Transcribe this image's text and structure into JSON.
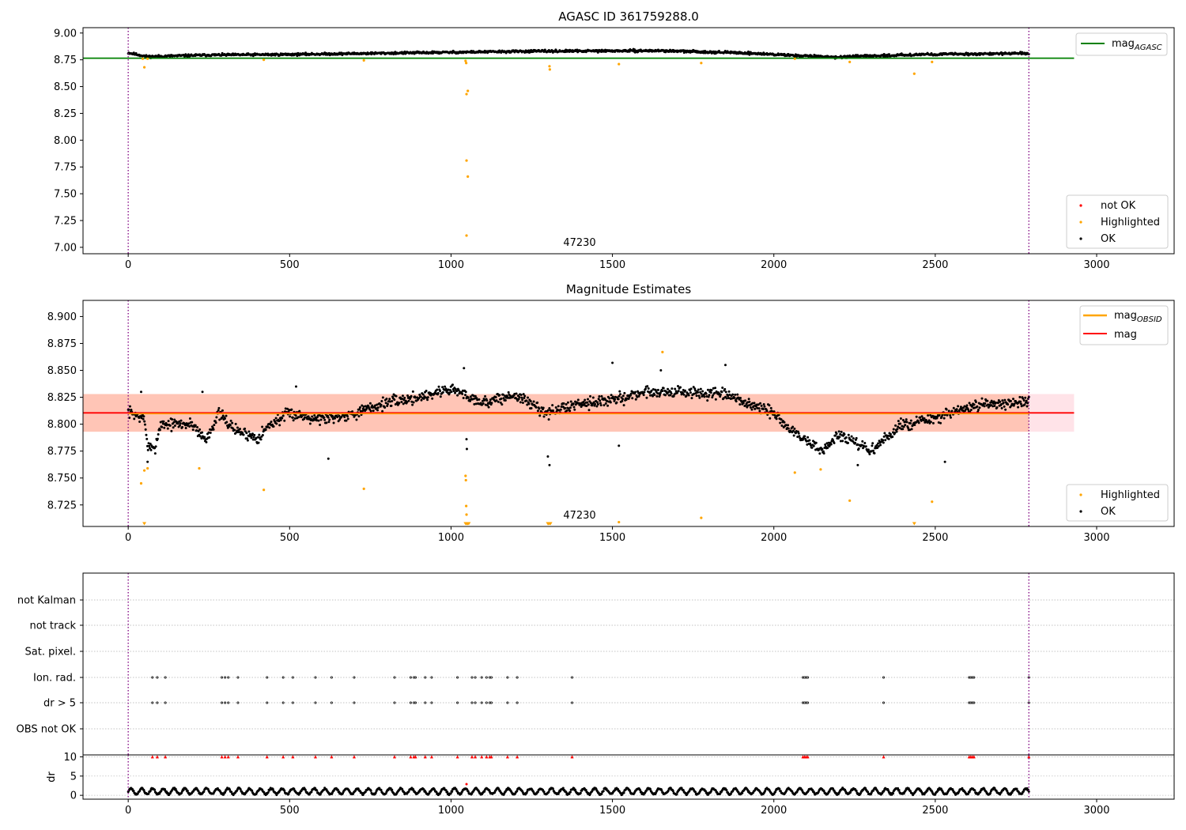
{
  "chart_data": [
    {
      "type": "scatter",
      "title": "AGASC ID 361759288.0",
      "xlim": [
        -140,
        3240
      ],
      "ylim": [
        6.94,
        9.05
      ],
      "xticks": [
        0,
        500,
        1000,
        1500,
        2000,
        2500,
        3000
      ],
      "yticks": [
        "9.00",
        "8.75",
        "8.50",
        "8.25",
        "8.00",
        "7.75",
        "7.50",
        "7.25",
        "7.00"
      ],
      "vlines": [
        0,
        2790
      ],
      "hlines": [
        {
          "name_main": "mag",
          "name_sub": "AGASC",
          "y": 8.765,
          "x_end": 2930,
          "color": "#008000"
        }
      ],
      "annotation": {
        "text": "47230",
        "x": 1400,
        "y": 7.03
      },
      "ok_series": {
        "name": "OK",
        "color": "#000000",
        "x_range": [
          0,
          2790
        ],
        "segments": [
          [
            0,
            8.815
          ],
          [
            60,
            8.78
          ],
          [
            250,
            8.795
          ],
          [
            500,
            8.8
          ],
          [
            1000,
            8.82
          ],
          [
            1250,
            8.83
          ],
          [
            1650,
            8.835
          ],
          [
            1900,
            8.815
          ],
          [
            2070,
            8.79
          ],
          [
            2200,
            8.775
          ],
          [
            2450,
            8.8
          ],
          [
            2790,
            8.81
          ]
        ]
      },
      "highlighted": {
        "name": "Highlighted",
        "color": "#ffa500",
        "points": [
          [
            45,
            8.76
          ],
          [
            50,
            8.68
          ],
          [
            60,
            8.76
          ],
          [
            420,
            8.75
          ],
          [
            730,
            8.745
          ],
          [
            1045,
            8.74
          ],
          [
            1047,
            8.72
          ],
          [
            1048,
            8.43
          ],
          [
            1052,
            8.46
          ],
          [
            1048,
            7.81
          ],
          [
            1052,
            7.66
          ],
          [
            1048,
            7.11
          ],
          [
            1305,
            8.69
          ],
          [
            1306,
            8.66
          ],
          [
            1520,
            8.71
          ],
          [
            1775,
            8.72
          ],
          [
            2065,
            8.76
          ],
          [
            2235,
            8.73
          ],
          [
            2435,
            8.62
          ],
          [
            2490,
            8.73
          ]
        ]
      },
      "not_ok": {
        "name": "not OK",
        "color": "#ff0000",
        "points": []
      },
      "legend_upper": "top-right",
      "legend_lower": "bottom-right"
    },
    {
      "type": "scatter",
      "title": "Magnitude Estimates",
      "xlim": [
        -140,
        3240
      ],
      "ylim": [
        8.705,
        8.915
      ],
      "xticks": [
        0,
        500,
        1000,
        1500,
        2000,
        2500,
        3000
      ],
      "yticks": [
        "8.900",
        "8.875",
        "8.850",
        "8.825",
        "8.800",
        "8.775",
        "8.750",
        "8.725"
      ],
      "vlines": [
        0,
        2790
      ],
      "annotation": {
        "text": "47230",
        "x": 1400,
        "y": 8.713
      },
      "mag_obsid": {
        "name_main": "mag",
        "name_sub": "OBSID",
        "y": 8.8105,
        "band": [
          8.793,
          8.828
        ],
        "x_end": 2790,
        "color": "#ffa500"
      },
      "mag": {
        "name": "mag",
        "y": 8.8105,
        "band": [
          8.793,
          8.828
        ],
        "x_end": 2930,
        "color": "#ff0000"
      },
      "ok_series": {
        "name": "OK",
        "color": "#000000",
        "trend": [
          [
            0,
            8.812
          ],
          [
            50,
            8.805
          ],
          [
            60,
            8.78
          ],
          [
            80,
            8.775
          ],
          [
            100,
            8.8
          ],
          [
            200,
            8.8
          ],
          [
            240,
            8.785
          ],
          [
            280,
            8.81
          ],
          [
            330,
            8.795
          ],
          [
            400,
            8.787
          ],
          [
            440,
            8.8
          ],
          [
            500,
            8.81
          ],
          [
            600,
            8.805
          ],
          [
            700,
            8.81
          ],
          [
            800,
            8.82
          ],
          [
            900,
            8.825
          ],
          [
            1000,
            8.833
          ],
          [
            1100,
            8.82
          ],
          [
            1200,
            8.827
          ],
          [
            1300,
            8.81
          ],
          [
            1400,
            8.82
          ],
          [
            1500,
            8.822
          ],
          [
            1600,
            8.83
          ],
          [
            1700,
            8.83
          ],
          [
            1850,
            8.827
          ],
          [
            2000,
            8.81
          ],
          [
            2050,
            8.795
          ],
          [
            2150,
            8.775
          ],
          [
            2200,
            8.79
          ],
          [
            2300,
            8.775
          ],
          [
            2400,
            8.8
          ],
          [
            2500,
            8.805
          ],
          [
            2600,
            8.815
          ],
          [
            2700,
            8.82
          ],
          [
            2790,
            8.82
          ]
        ],
        "outliers": [
          [
            40,
            8.83
          ],
          [
            60,
            8.765
          ],
          [
            230,
            8.83
          ],
          [
            520,
            8.835
          ],
          [
            620,
            8.768
          ],
          [
            1040,
            8.852
          ],
          [
            1048,
            8.786
          ],
          [
            1049,
            8.777
          ],
          [
            1300,
            8.77
          ],
          [
            1305,
            8.762
          ],
          [
            1500,
            8.857
          ],
          [
            1520,
            8.78
          ],
          [
            1650,
            8.85
          ],
          [
            1850,
            8.855
          ],
          [
            2260,
            8.762
          ],
          [
            2530,
            8.765
          ]
        ]
      },
      "highlighted": {
        "name": "Highlighted",
        "color": "#ffa500",
        "points": [
          [
            40,
            8.745
          ],
          [
            50,
            8.757
          ],
          [
            60,
            8.759
          ],
          [
            220,
            8.759
          ],
          [
            420,
            8.739
          ],
          [
            730,
            8.74
          ],
          [
            1045,
            8.752
          ],
          [
            1046,
            8.748
          ],
          [
            1047,
            8.724
          ],
          [
            1048,
            8.716
          ],
          [
            1520,
            8.709
          ],
          [
            1655,
            8.867
          ],
          [
            1775,
            8.713
          ],
          [
            2065,
            8.755
          ],
          [
            2145,
            8.758
          ],
          [
            2235,
            8.729
          ],
          [
            2490,
            8.728
          ]
        ],
        "clipped_x": [
          50,
          1045,
          1048,
          1050,
          1052,
          1055,
          1300,
          1302,
          1305,
          1308,
          2435
        ]
      },
      "legend_upper": "top-right",
      "legend_lower": "bottom-right"
    },
    {
      "type": "scatter",
      "xlim": [
        -140,
        3240
      ],
      "flag_rows": [
        "not Kalman",
        "not track",
        "Sat. pixel.",
        "Ion. rad.",
        "dr > 5",
        "OBS not OK"
      ],
      "flagged_x": [
        75,
        90,
        115,
        290,
        300,
        310,
        340,
        430,
        480,
        510,
        580,
        630,
        700,
        825,
        875,
        885,
        890,
        920,
        940,
        1020,
        1065,
        1075,
        1095,
        1110,
        1120,
        1125,
        1175,
        1205,
        1375,
        2090,
        2095,
        2100,
        2105,
        2340,
        2605,
        2610,
        2615,
        2620,
        2790
      ],
      "vlines": [
        0,
        2790
      ]
    },
    {
      "type": "scatter",
      "ylabel": "dr",
      "xlim": [
        -140,
        3240
      ],
      "ylim": [
        -1,
        10.5
      ],
      "xticks": [
        0,
        500,
        1000,
        1500,
        2000,
        2500,
        3000
      ],
      "yticks": [
        "10",
        "5",
        "0"
      ],
      "vlines": [
        0,
        2790
      ],
      "dr_series": {
        "x_range": [
          0,
          2790
        ],
        "min": 0.1,
        "max": 2.2,
        "color": "#000000"
      },
      "dr_spike": [
        1048,
        2.9
      ],
      "capped_color": "#ff0000",
      "capped_y": 10
    }
  ]
}
